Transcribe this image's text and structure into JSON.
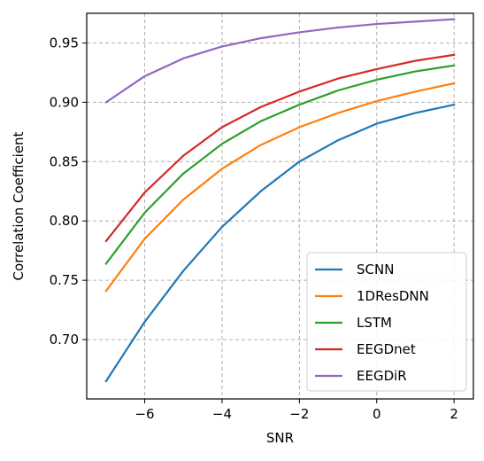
{
  "chart_data": {
    "type": "line",
    "title": "",
    "xlabel": "SNR",
    "ylabel": "Correlation Coefficient",
    "xlim": [
      -7.5,
      2.5
    ],
    "ylim": [
      0.65,
      0.975
    ],
    "x": [
      -7,
      -6,
      -5,
      -4,
      -3,
      -2,
      -1,
      0,
      1,
      2
    ],
    "x_ticks": [
      -6,
      -4,
      -2,
      0,
      2
    ],
    "x_tick_labels": [
      "−6",
      "−4",
      "−2",
      "0",
      "2"
    ],
    "y_ticks": [
      0.7,
      0.75,
      0.8,
      0.85,
      0.9,
      0.95
    ],
    "y_tick_labels": [
      "0.70",
      "0.75",
      "0.80",
      "0.85",
      "0.90",
      "0.95"
    ],
    "grid": true,
    "legend_position": "lower-right",
    "series": [
      {
        "name": "SCNN",
        "color": "#1f77b4",
        "values": [
          0.665,
          0.715,
          0.758,
          0.795,
          0.825,
          0.85,
          0.868,
          0.882,
          0.891,
          0.898
        ]
      },
      {
        "name": "1DResDNN",
        "color": "#ff7f0e",
        "values": [
          0.741,
          0.785,
          0.818,
          0.844,
          0.864,
          0.879,
          0.891,
          0.901,
          0.909,
          0.916
        ]
      },
      {
        "name": "LSTM",
        "color": "#2ca02c",
        "values": [
          0.764,
          0.807,
          0.84,
          0.865,
          0.884,
          0.898,
          0.91,
          0.919,
          0.926,
          0.931
        ]
      },
      {
        "name": "EEGDnet",
        "color": "#d62728",
        "values": [
          0.783,
          0.824,
          0.855,
          0.879,
          0.896,
          0.909,
          0.92,
          0.928,
          0.935,
          0.94
        ]
      },
      {
        "name": "EEGDiR",
        "color": "#9467bd",
        "values": [
          0.9,
          0.922,
          0.937,
          0.947,
          0.954,
          0.959,
          0.963,
          0.966,
          0.968,
          0.97
        ]
      }
    ]
  }
}
